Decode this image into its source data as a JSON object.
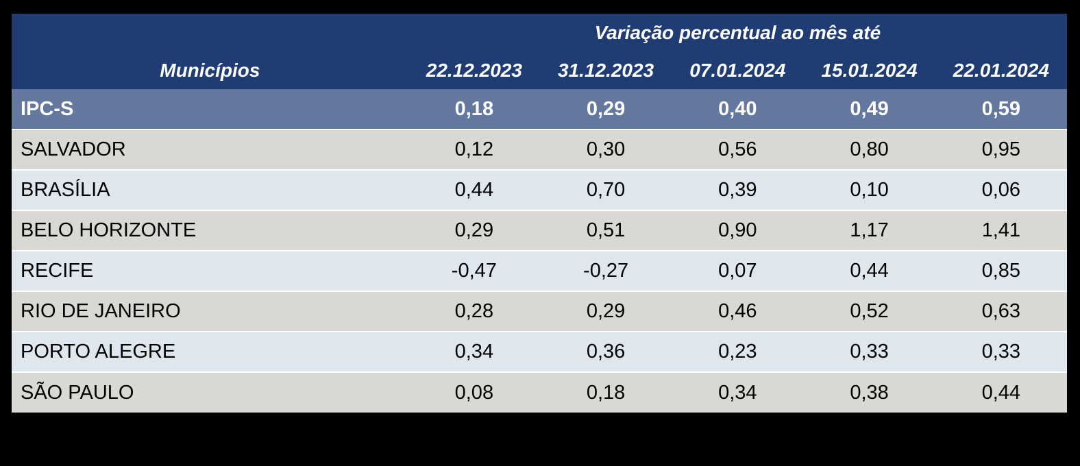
{
  "colors": {
    "page_bg": "#000000",
    "header_bg": "#1F3D73",
    "highlight_bg": "#64779F",
    "row_gray": "#D9D8D4",
    "row_blue": "#DEE6EE",
    "header_text": "#FFFFFF",
    "body_text": "#000000",
    "separator": "#FFFFFF"
  },
  "chart_data": {
    "type": "table",
    "title": "Variação percentual ao mês até",
    "row_header_label": "Municípios",
    "columns": [
      "22.12.2023",
      "31.12.2023",
      "07.01.2024",
      "15.01.2024",
      "22.01.2024"
    ],
    "rows": [
      {
        "label": "IPC-S",
        "highlight": true,
        "values": [
          "0,18",
          "0,29",
          "0,40",
          "0,49",
          "0,59"
        ]
      },
      {
        "label": "SALVADOR",
        "highlight": false,
        "values": [
          "0,12",
          "0,30",
          "0,56",
          "0,80",
          "0,95"
        ]
      },
      {
        "label": "BRASÍLIA",
        "highlight": false,
        "values": [
          "0,44",
          "0,70",
          "0,39",
          "0,10",
          "0,06"
        ]
      },
      {
        "label": "BELO HORIZONTE",
        "highlight": false,
        "values": [
          "0,29",
          "0,51",
          "0,90",
          "1,17",
          "1,41"
        ]
      },
      {
        "label": "RECIFE",
        "highlight": false,
        "values": [
          "-0,47",
          "-0,27",
          "0,07",
          "0,44",
          "0,85"
        ]
      },
      {
        "label": "RIO DE JANEIRO",
        "highlight": false,
        "values": [
          "0,28",
          "0,29",
          "0,46",
          "0,52",
          "0,63"
        ]
      },
      {
        "label": "PORTO ALEGRE",
        "highlight": false,
        "values": [
          "0,34",
          "0,36",
          "0,23",
          "0,33",
          "0,33"
        ]
      },
      {
        "label": "SÃO PAULO",
        "highlight": false,
        "values": [
          "0,08",
          "0,18",
          "0,34",
          "0,38",
          "0,44"
        ]
      }
    ]
  }
}
